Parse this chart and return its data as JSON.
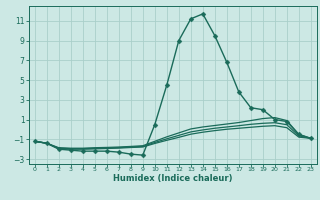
{
  "xlabel": "Humidex (Indice chaleur)",
  "background_color": "#cce8e4",
  "grid_color": "#aacfca",
  "line_color": "#1a6b5a",
  "xlim": [
    -0.5,
    23.5
  ],
  "ylim": [
    -3.5,
    12.5
  ],
  "xticks": [
    0,
    1,
    2,
    3,
    4,
    5,
    6,
    7,
    8,
    9,
    10,
    11,
    12,
    13,
    14,
    15,
    16,
    17,
    18,
    19,
    20,
    21,
    22,
    23
  ],
  "yticks": [
    -3,
    -1,
    1,
    3,
    5,
    7,
    9,
    11
  ],
  "series": [
    {
      "x": [
        0,
        1,
        2,
        3,
        4,
        5,
        6,
        7,
        8,
        9,
        10,
        11,
        12,
        13,
        14,
        15,
        16,
        17,
        18,
        19,
        20,
        21,
        22,
        23
      ],
      "y": [
        -1.2,
        -1.4,
        -2.0,
        -2.1,
        -2.2,
        -2.2,
        -2.2,
        -2.3,
        -2.5,
        -2.6,
        0.5,
        4.5,
        9.0,
        11.2,
        11.7,
        9.5,
        6.8,
        3.8,
        2.2,
        2.0,
        1.0,
        0.8,
        -0.5,
        -0.9
      ],
      "marker": true,
      "markersize": 2.5,
      "linewidth": 1.0
    },
    {
      "x": [
        0,
        1,
        2,
        3,
        4,
        5,
        6,
        7,
        8,
        9,
        10,
        11,
        12,
        13,
        14,
        15,
        16,
        17,
        18,
        19,
        20,
        21,
        22,
        23
      ],
      "y": [
        -1.2,
        -1.4,
        -1.85,
        -1.9,
        -1.9,
        -1.85,
        -1.82,
        -1.78,
        -1.72,
        -1.65,
        -1.2,
        -0.75,
        -0.35,
        0.05,
        0.25,
        0.4,
        0.55,
        0.7,
        0.9,
        1.1,
        1.2,
        0.9,
        -0.5,
        -0.9
      ],
      "marker": false,
      "markersize": 0,
      "linewidth": 0.9
    },
    {
      "x": [
        0,
        1,
        2,
        3,
        4,
        5,
        6,
        7,
        8,
        9,
        10,
        11,
        12,
        13,
        14,
        15,
        16,
        17,
        18,
        19,
        20,
        21,
        22,
        23
      ],
      "y": [
        -1.2,
        -1.4,
        -1.9,
        -1.95,
        -1.95,
        -1.92,
        -1.88,
        -1.84,
        -1.78,
        -1.72,
        -1.32,
        -0.95,
        -0.6,
        -0.25,
        -0.05,
        0.12,
        0.25,
        0.38,
        0.52,
        0.62,
        0.68,
        0.48,
        -0.65,
        -0.9
      ],
      "marker": false,
      "markersize": 0,
      "linewidth": 0.9
    },
    {
      "x": [
        0,
        1,
        2,
        3,
        4,
        5,
        6,
        7,
        8,
        9,
        10,
        11,
        12,
        13,
        14,
        15,
        16,
        17,
        18,
        19,
        20,
        21,
        22,
        23
      ],
      "y": [
        -1.2,
        -1.4,
        -1.95,
        -2.0,
        -2.0,
        -1.97,
        -1.93,
        -1.89,
        -1.83,
        -1.78,
        -1.42,
        -1.1,
        -0.8,
        -0.48,
        -0.28,
        -0.12,
        0.02,
        0.12,
        0.22,
        0.32,
        0.38,
        0.18,
        -0.78,
        -0.9
      ],
      "marker": false,
      "markersize": 0,
      "linewidth": 0.9
    }
  ]
}
